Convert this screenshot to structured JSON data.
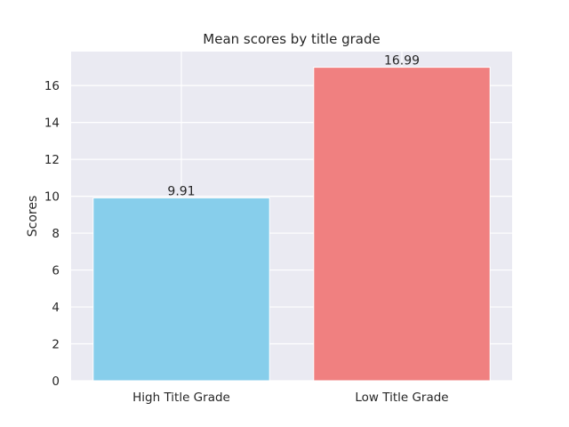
{
  "chart_data": {
    "type": "bar",
    "title": "Mean scores by title grade",
    "xlabel": "",
    "ylabel": "Scores",
    "categories": [
      "High Title Grade",
      "Low Title Grade"
    ],
    "values": [
      9.91,
      16.99
    ],
    "value_labels": [
      "9.91",
      "16.99"
    ],
    "colors": [
      "#87ceeb",
      "#f08080"
    ],
    "ylim": [
      0,
      17.84
    ],
    "yticks": [
      0,
      2,
      4,
      6,
      8,
      10,
      12,
      14,
      16
    ],
    "grid": true,
    "legend": "none",
    "background": "#eaeaf2"
  }
}
